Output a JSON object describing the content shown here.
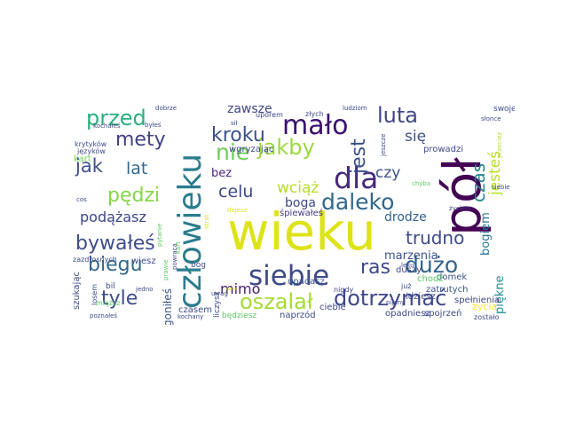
{
  "words": [
    {
      "text": "wieku",
      "color": "#dde318"
    },
    {
      "text": "pół",
      "color": "#440154"
    },
    {
      "text": "człowieku",
      "color": "#2b7c8e"
    },
    {
      "text": "siebie",
      "color": "#3e4a89"
    },
    {
      "text": "dla",
      "color": "#472a7a"
    },
    {
      "text": "mało",
      "color": "#3b0f70"
    },
    {
      "text": "nie",
      "color": "#6ece58"
    },
    {
      "text": "daleko",
      "color": "#31688e"
    },
    {
      "text": "kroku",
      "color": "#3b518b"
    },
    {
      "text": "jakby",
      "color": "#9bd93c"
    },
    {
      "text": "jest",
      "color": "#3b518b"
    },
    {
      "text": "luta",
      "color": "#404688"
    },
    {
      "text": "przed",
      "color": "#2ab07f"
    },
    {
      "text": "mety",
      "color": "#424186"
    },
    {
      "text": "dużo",
      "color": "#33638d"
    },
    {
      "text": "dotrzymać",
      "color": "#404688"
    },
    {
      "text": "oszalał",
      "color": "#a5db36"
    },
    {
      "text": "ras",
      "color": "#3e4989"
    },
    {
      "text": "pędzi",
      "color": "#86d549"
    },
    {
      "text": "bywałeś",
      "color": "#3e4c8a"
    },
    {
      "text": "biegu",
      "color": "#31688e"
    },
    {
      "text": "tyle",
      "color": "#3e4c8a"
    },
    {
      "text": "jak",
      "color": "#3d4e8a"
    },
    {
      "text": "lat",
      "color": "#31678e"
    },
    {
      "text": "celu",
      "color": "#3e4a89"
    },
    {
      "text": "trudno",
      "color": "#3e4a89"
    },
    {
      "text": "czas",
      "color": "#25858e"
    },
    {
      "text": "jesteś",
      "color": "#b8de29"
    },
    {
      "text": "się",
      "color": "#3b518b"
    },
    {
      "text": "czy",
      "color": "#3b518b"
    },
    {
      "text": "wciąż",
      "color": "#b5de2b"
    },
    {
      "text": "podążasz",
      "color": "#3f4788"
    },
    {
      "text": "mimo",
      "color": "#481f70"
    },
    {
      "text": "drodze",
      "color": "#33638d"
    },
    {
      "text": "bogiem",
      "color": "#2a788e"
    },
    {
      "text": "piękne",
      "color": "#238a8d"
    },
    {
      "text": "zawsze",
      "color": "#3f4788"
    },
    {
      "text": "boga",
      "color": "#3e4989"
    },
    {
      "text": "bez",
      "color": "#482878"
    },
    {
      "text": "marzenia",
      "color": "#3b528b"
    },
    {
      "text": "goniłeś",
      "color": "#39568c"
    },
    {
      "text": "upadasz",
      "color": "#3b528b"
    },
    {
      "text": "śpiewałeś",
      "color": "#453882"
    },
    {
      "text": "wgryzając",
      "color": "#3e4989"
    },
    {
      "text": "prowadzi",
      "color": "#3e4a89"
    },
    {
      "text": "domek",
      "color": "#3b528b"
    },
    {
      "text": "chodź",
      "color": "#5ec962"
    },
    {
      "text": "duszy",
      "color": "#3f4788"
    },
    {
      "text": "zatrutych",
      "color": "#3b528b"
    },
    {
      "text": "idziesz",
      "color": "#3f4788"
    },
    {
      "text": "spełnienia",
      "color": "#3f4788"
    },
    {
      "text": "ciebie",
      "color": "#3f4788"
    },
    {
      "text": "nigdy",
      "color": "#3f4788"
    },
    {
      "text": "życiem",
      "color": "#3f4788"
    },
    {
      "text": "szukając",
      "color": "#3e4a89"
    },
    {
      "text": "liczysz",
      "color": "#3e4a89"
    },
    {
      "text": "opadniesz",
      "color": "#3e4a89"
    },
    {
      "text": "spojrzeń",
      "color": "#3e4a89"
    },
    {
      "text": "naprzód",
      "color": "#3e4a89"
    },
    {
      "text": "będziesz",
      "color": "#5ec962"
    },
    {
      "text": "zostało",
      "color": "#3e4a89"
    },
    {
      "text": "życia",
      "color": "#fde725"
    },
    {
      "text": "czasem",
      "color": "#3e4a89"
    },
    {
      "text": "wiesz",
      "color": "#3e4a89"
    },
    {
      "text": "bil",
      "color": "#3e4a89"
    },
    {
      "text": "bóg",
      "color": "#3e4a89"
    },
    {
      "text": "losem",
      "color": "#3e4a89"
    },
    {
      "text": "miąższ",
      "color": "#5ec962"
    },
    {
      "text": "zazdrosnych",
      "color": "#3e4a89"
    },
    {
      "text": "krytyków",
      "color": "#3e4a89"
    },
    {
      "text": "kart",
      "color": "#7ad151"
    },
    {
      "text": "języków",
      "color": "#3e4a89"
    },
    {
      "text": "kochałeś",
      "color": "#3e4a89"
    },
    {
      "text": "byłeś",
      "color": "#3e4a89"
    },
    {
      "text": "dobrze",
      "color": "#3e4a89"
    },
    {
      "text": "sił",
      "color": "#3e4a89"
    },
    {
      "text": "uporem",
      "color": "#3e4a89"
    },
    {
      "text": "złych",
      "color": "#3e4a89"
    },
    {
      "text": "ludziom",
      "color": "#3e4a89"
    },
    {
      "text": "swoje",
      "color": "#3e4a89"
    },
    {
      "text": "słonce",
      "color": "#3e4a89"
    },
    {
      "text": "jeszcze",
      "color": "#3e4a89"
    },
    {
      "text": "przecież",
      "color": "#b5de2b"
    },
    {
      "text": "pytanie",
      "color": "#5ec962"
    },
    {
      "text": "cos",
      "color": "#3e4a89"
    },
    {
      "text": "jedno",
      "color": "#3e4a89"
    },
    {
      "text": "poznałeś",
      "color": "#3e4a89"
    },
    {
      "text": "kochany",
      "color": "#3e4a89"
    },
    {
      "text": "prawie",
      "color": "#5ec962"
    },
    {
      "text": "powraca",
      "color": "#3e4a89"
    },
    {
      "text": "kart",
      "color": "#5ec962"
    },
    {
      "text": "strat",
      "color": "#dde318"
    },
    {
      "text": "uwag",
      "color": "#3e4a89"
    },
    {
      "text": "rams",
      "color": "#dde318"
    },
    {
      "text": "już",
      "color": "#3e4a89"
    },
    {
      "text": "leku",
      "color": "#3e4a89"
    },
    {
      "text": "pijany",
      "color": "#3e4a89"
    },
    {
      "text": "chyba",
      "color": "#5ec962"
    },
    {
      "text": "siebie",
      "color": "#3e4a89"
    },
    {
      "text": "dajesz",
      "color": "#dde318"
    }
  ]
}
